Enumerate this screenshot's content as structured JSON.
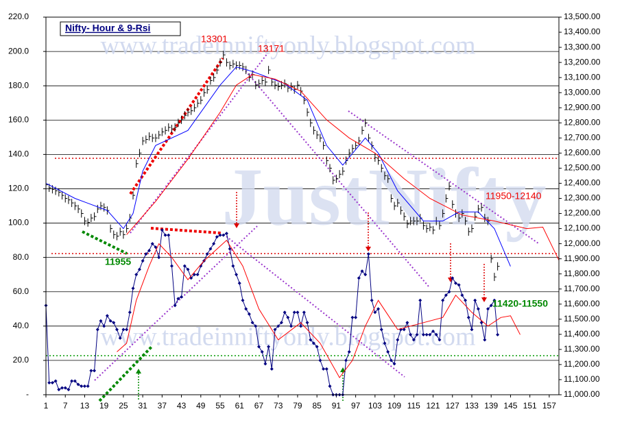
{
  "chart_data": {
    "type": "line",
    "title": "Nifty- Hour & 9-Rsi",
    "watermarks": [
      "www.tradeinniftyonly.blogspot.com",
      "JustNifty",
      "www.tradeinniftyonly.blogspot.com"
    ],
    "annotations": [
      "13301",
      "13171",
      "11955",
      "11950-12140",
      "11420-11550"
    ],
    "grid": true,
    "xlim": [
      1,
      160
    ],
    "xticks": [
      1,
      7,
      13,
      19,
      25,
      31,
      37,
      43,
      49,
      55,
      61,
      67,
      73,
      79,
      85,
      91,
      97,
      103,
      109,
      115,
      121,
      127,
      133,
      139,
      145,
      151,
      157
    ],
    "ylim": [
      0,
      220
    ],
    "yticks": [
      {
        "value": 0,
        "label": "-"
      },
      {
        "value": 20,
        "label": "20.0"
      },
      {
        "value": 40,
        "label": "40.0"
      },
      {
        "value": 60,
        "label": "60.0"
      },
      {
        "value": 80,
        "label": "80.0"
      },
      {
        "value": 100,
        "label": "100.0"
      },
      {
        "value": 120,
        "label": "120.0"
      },
      {
        "value": 140,
        "label": "140.0"
      },
      {
        "value": 160,
        "label": "160.0"
      },
      {
        "value": 180,
        "label": "180.0"
      },
      {
        "value": 200,
        "label": "200.0"
      },
      {
        "value": 220,
        "label": "220.0"
      }
    ],
    "y2lim": [
      11000,
      13500
    ],
    "y2ticks": [
      {
        "value": 11000,
        "label": "11,000.00"
      },
      {
        "value": 11100,
        "label": "11,100.00"
      },
      {
        "value": 11200,
        "label": "11,200.00"
      },
      {
        "value": 11300,
        "label": "11,300.00"
      },
      {
        "value": 11400,
        "label": "11,400.00"
      },
      {
        "value": 11500,
        "label": "11,500.00"
      },
      {
        "value": 11600,
        "label": "11,600.00"
      },
      {
        "value": 11700,
        "label": "11,700.00"
      },
      {
        "value": 11800,
        "label": "11,800.00"
      },
      {
        "value": 11900,
        "label": "11,900.00"
      },
      {
        "value": 12000,
        "label": "12,000.00"
      },
      {
        "value": 12100,
        "label": "12,100.00"
      },
      {
        "value": 12200,
        "label": "12,200.00"
      },
      {
        "value": 12300,
        "label": "12,300.00"
      },
      {
        "value": 12400,
        "label": "12,400.00"
      },
      {
        "value": 12500,
        "label": "12,500.00"
      },
      {
        "value": 12600,
        "label": "12,600.00"
      },
      {
        "value": 12700,
        "label": "12,700.00"
      },
      {
        "value": 12800,
        "label": "12,800.00"
      },
      {
        "value": 12900,
        "label": "12,900.00"
      },
      {
        "value": 13000,
        "label": "13,000.00"
      },
      {
        "value": 13100,
        "label": "13,100.00"
      },
      {
        "value": 13200,
        "label": "13,200.00"
      },
      {
        "value": 13300,
        "label": "13,300.00"
      },
      {
        "value": 13400,
        "label": "13,400.00"
      },
      {
        "value": 13500,
        "label": "13,500.00"
      }
    ],
    "series": [
      {
        "color": "#000080",
        "marker": "diamond",
        "x": [
          1,
          2,
          3,
          4,
          5,
          6,
          7,
          8,
          9,
          10,
          11,
          12,
          13,
          14,
          15,
          16,
          17,
          18,
          19,
          20,
          21,
          22,
          23,
          24,
          25,
          26,
          27,
          28,
          29,
          30,
          31,
          32,
          33,
          34,
          35,
          36,
          37,
          38,
          39,
          40,
          41,
          42,
          43,
          44,
          45,
          46,
          47,
          48,
          49,
          50,
          51,
          52,
          53,
          54,
          55,
          56,
          57,
          58,
          59,
          60,
          61,
          62,
          63,
          64,
          65,
          66,
          67,
          68,
          69,
          70,
          71,
          72,
          73,
          74,
          75,
          76,
          77,
          78,
          79,
          80,
          81,
          82,
          83,
          84,
          85,
          86,
          87,
          88,
          89,
          90,
          91,
          92,
          93,
          94,
          95,
          96,
          97,
          98,
          99,
          100,
          101,
          102,
          103,
          104,
          105,
          106,
          107,
          108,
          109,
          110,
          111,
          112,
          113,
          114,
          115,
          116,
          117,
          118,
          119,
          120,
          121,
          122,
          123,
          124,
          125,
          126,
          127,
          128,
          129,
          130,
          131,
          132,
          133,
          134,
          135,
          136,
          137,
          138,
          139,
          140,
          141
        ],
        "values": [
          52,
          7,
          7,
          8,
          3,
          4,
          4,
          3,
          8,
          8,
          6,
          5,
          5,
          5,
          14,
          14,
          38,
          43,
          40,
          46,
          43,
          42,
          38,
          33,
          38,
          38,
          48,
          62,
          70,
          73,
          78,
          82,
          84,
          88,
          86,
          80,
          96,
          93,
          93,
          75,
          52,
          56,
          57,
          75,
          73,
          68,
          70,
          70,
          75,
          78,
          82,
          85,
          88,
          92,
          93,
          93,
          94,
          85,
          75,
          70,
          65,
          55,
          50,
          47,
          42,
          40,
          28,
          25,
          18,
          28,
          15,
          38,
          40,
          42,
          48,
          45,
          40,
          48,
          48,
          40,
          48,
          42,
          32,
          30,
          28,
          20,
          15,
          15,
          5,
          0,
          0,
          0,
          0,
          20,
          25,
          45,
          45,
          68,
          72,
          70,
          82,
          55,
          48,
          50,
          38,
          30,
          25,
          20,
          18,
          32,
          38,
          38,
          42,
          35,
          32,
          35,
          55,
          35,
          35,
          35,
          37,
          35,
          32,
          55,
          58,
          60,
          68,
          65,
          64,
          58,
          55,
          45,
          38,
          55,
          50,
          42,
          32,
          50,
          52,
          55,
          35
        ]
      },
      {
        "color": "#ff0000",
        "marker": "none",
        "x": [
          23,
          26,
          29,
          33,
          36,
          40,
          45,
          50,
          57,
          62,
          67,
          73,
          80,
          86,
          92,
          96,
          100,
          104,
          110,
          118,
          124,
          128,
          133,
          138,
          142,
          145,
          148
        ],
        "values": [
          25,
          30,
          55,
          75,
          88,
          80,
          67,
          78,
          90,
          75,
          50,
          32,
          42,
          30,
          10,
          20,
          40,
          55,
          38,
          42,
          45,
          58,
          48,
          40,
          45,
          46,
          35
        ]
      },
      {
        "color": "#000000",
        "marker": "tick",
        "axis": "y2",
        "x": [
          1,
          2,
          3,
          4,
          5,
          6,
          7,
          8,
          9,
          10,
          11,
          12,
          13,
          14,
          15,
          16,
          17,
          18,
          19,
          20,
          21,
          22,
          23,
          24,
          25,
          26,
          27,
          28,
          29,
          30,
          31,
          32,
          33,
          34,
          35,
          36,
          37,
          38,
          39,
          40,
          41,
          42,
          43,
          44,
          45,
          46,
          47,
          48,
          49,
          50,
          51,
          52,
          53,
          54,
          55,
          56,
          57,
          58,
          59,
          60,
          61,
          62,
          63,
          64,
          65,
          66,
          67,
          68,
          69,
          70,
          71,
          72,
          73,
          74,
          75,
          76,
          77,
          78,
          79,
          80,
          81,
          82,
          83,
          84,
          85,
          86,
          87,
          88,
          89,
          90,
          91,
          92,
          93,
          94,
          95,
          96,
          97,
          98,
          99,
          100,
          101,
          102,
          103,
          104,
          105,
          106,
          107,
          108,
          109,
          110,
          111,
          112,
          113,
          114,
          115,
          116,
          117,
          118,
          119,
          120,
          121,
          122,
          123,
          124,
          125,
          126,
          127,
          128,
          129,
          130,
          131,
          132,
          133,
          134,
          135,
          136,
          137,
          138,
          139,
          140,
          141
        ],
        "values": [
          12390,
          12370,
          12360,
          12350,
          12340,
          12320,
          12300,
          12290,
          12270,
          12250,
          12230,
          12200,
          12150,
          12140,
          12170,
          12180,
          12230,
          12250,
          12240,
          12220,
          12100,
          12060,
          12050,
          12080,
          12060,
          12100,
          12170,
          12320,
          12530,
          12600,
          12680,
          12690,
          12710,
          12700,
          12700,
          12720,
          12740,
          12750,
          12770,
          12760,
          12770,
          12800,
          12820,
          12850,
          12870,
          12880,
          12900,
          12930,
          12950,
          13000,
          13020,
          13080,
          13100,
          13150,
          13200,
          13250,
          13200,
          13180,
          13190,
          13180,
          13180,
          13170,
          13150,
          13100,
          13120,
          13050,
          13060,
          13080,
          13070,
          13150,
          13070,
          13050,
          13040,
          13050,
          13060,
          13030,
          13040,
          13020,
          13050,
          13010,
          12950,
          12870,
          12800,
          12750,
          12720,
          12700,
          12650,
          12550,
          12500,
          12420,
          12430,
          12460,
          12480,
          12550,
          12600,
          12630,
          12650,
          12680,
          12750,
          12800,
          12700,
          12650,
          12570,
          12550,
          12500,
          12450,
          12430,
          12300,
          12250,
          12270,
          12220,
          12180,
          12130,
          12150,
          12150,
          12150,
          12170,
          12120,
          12100,
          12110,
          12090,
          12150,
          12120,
          12200,
          12300,
          12380,
          12260,
          12200,
          12170,
          12200,
          12150,
          12080,
          12100,
          12180,
          12230,
          12240,
          12170,
          12150,
          11900,
          11780,
          11850
        ]
      },
      {
        "color": "#0000ff",
        "marker": "none",
        "axis": "y2",
        "x": [
          1,
          10,
          20,
          25,
          28,
          31,
          35,
          45,
          55,
          60,
          65,
          75,
          82,
          88,
          93,
          100,
          104,
          110,
          118,
          124,
          129,
          135,
          140,
          145
        ],
        "values": [
          12400,
          12300,
          12220,
          12100,
          12200,
          12480,
          12650,
          12750,
          13050,
          13170,
          13140,
          13060,
          12950,
          12650,
          12520,
          12700,
          12600,
          12350,
          12150,
          12150,
          12210,
          12210,
          12100,
          11850
        ]
      },
      {
        "color": "#ff0000",
        "marker": "none",
        "axis": "y2",
        "x": [
          26,
          35,
          45,
          55,
          60,
          65,
          72,
          80,
          88,
          95,
          103,
          112,
          120,
          130,
          140,
          150,
          155,
          160
        ],
        "values": [
          12060,
          12280,
          12560,
          12870,
          13050,
          13120,
          13090,
          13010,
          12820,
          12700,
          12600,
          12430,
          12300,
          12190,
          12150,
          12100,
          12110,
          11890
        ]
      }
    ]
  }
}
